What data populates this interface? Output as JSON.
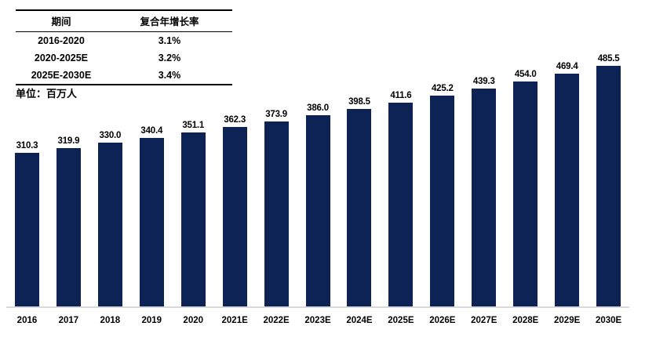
{
  "table": {
    "headers": [
      "期间",
      "复合年增长率"
    ],
    "rows": [
      {
        "period": "2016-2020",
        "cagr": "3.1%"
      },
      {
        "period": "2020-2025E",
        "cagr": "3.2%"
      },
      {
        "period": "2025E-2030E",
        "cagr": "3.4%"
      }
    ]
  },
  "unit_label": "单位：百万人",
  "chart_data": {
    "type": "bar",
    "title": "",
    "xlabel": "",
    "ylabel": "单位：百万人",
    "categories": [
      "2016",
      "2017",
      "2018",
      "2019",
      "2020",
      "2021E",
      "2022E",
      "2023E",
      "2024E",
      "2025E",
      "2026E",
      "2027E",
      "2028E",
      "2029E",
      "2030E"
    ],
    "values": [
      310.3,
      319.9,
      330.0,
      340.4,
      351.1,
      362.3,
      373.9,
      386.0,
      398.5,
      411.6,
      425.2,
      439.3,
      454.0,
      469.4,
      485.5
    ],
    "value_labels": [
      "310.3",
      "319.9",
      "330.0",
      "340.4",
      "351.1",
      "362.3",
      "373.9",
      "386.0",
      "398.5",
      "411.6",
      "425.2",
      "439.3",
      "454.0",
      "469.4",
      "485.5"
    ],
    "ylim": [
      0,
      500
    ],
    "grid": false,
    "legend_position": "none",
    "bar_color": "#0d2356"
  },
  "colors": {
    "bar": "#0d2356",
    "axis_line": "#d9d9d9",
    "text": "#000000"
  }
}
